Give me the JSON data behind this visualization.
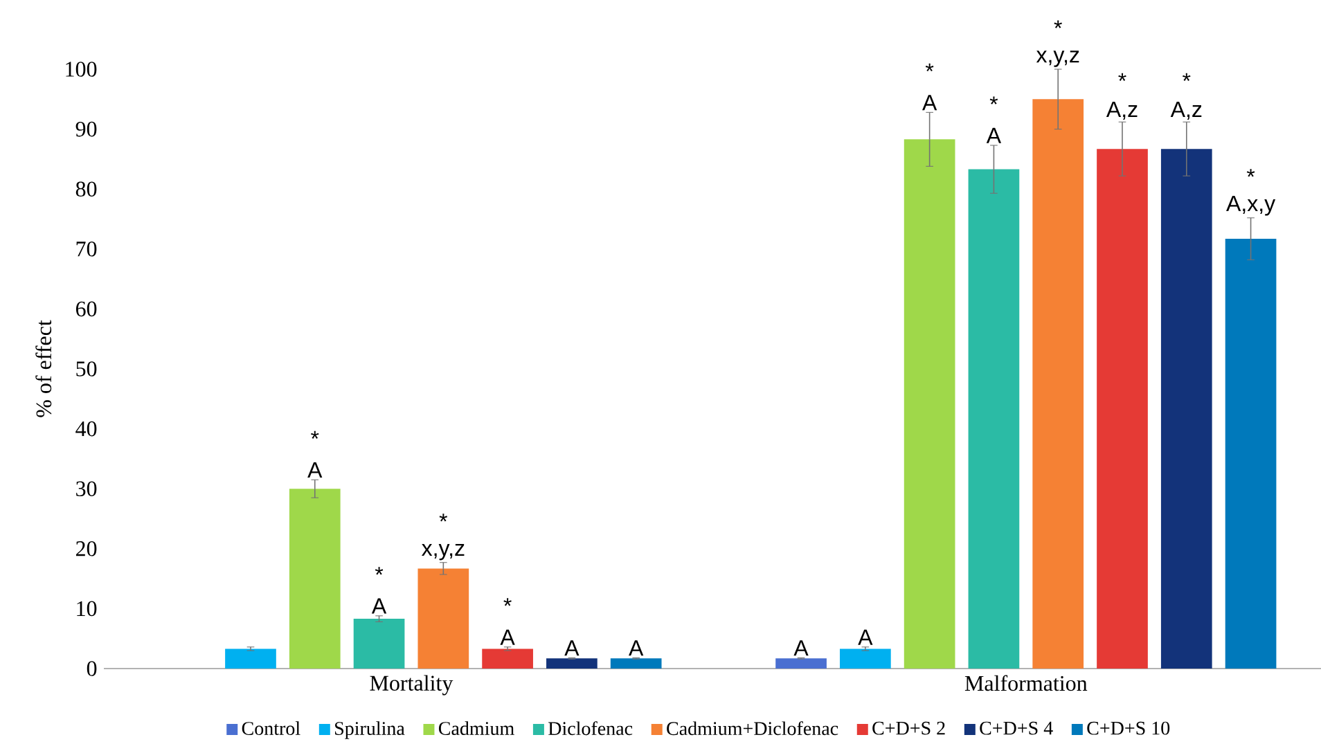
{
  "chart_data": {
    "type": "bar",
    "ylabel": "% of effect",
    "categories": [
      "Mortality",
      "Malformation"
    ],
    "ylim": [
      0,
      100
    ],
    "yticks": [
      0,
      10,
      20,
      30,
      40,
      50,
      60,
      70,
      80,
      90,
      100
    ],
    "legend": "bottom",
    "series": [
      {
        "name": "Control",
        "color": "#4a6fd1",
        "values": [
          0,
          1.7
        ],
        "errors": [
          null,
          0.1
        ],
        "value_labels": [
          null,
          "A"
        ]
      },
      {
        "name": "Spirulina",
        "color": "#00b0f0",
        "values": [
          3.3,
          3.3
        ],
        "errors": [
          0.3,
          0.3
        ],
        "value_labels": [
          null,
          "A"
        ]
      },
      {
        "name": "Cadmium",
        "color": "#9fd84a",
        "values": [
          30,
          88.3
        ],
        "errors": [
          1.5,
          4.5
        ],
        "value_labels": [
          "A",
          "A"
        ]
      },
      {
        "name": "Diclofenac",
        "color": "#2bbba5",
        "values": [
          8.3,
          83.3
        ],
        "errors": [
          0.5,
          4
        ],
        "value_labels": [
          "A",
          "A"
        ]
      },
      {
        "name": "Cadmium+Diclofenac",
        "color": "#f58134",
        "values": [
          16.7,
          95
        ],
        "errors": [
          1,
          5
        ],
        "value_labels": [
          "x,y,z",
          "x,y,z"
        ]
      },
      {
        "name": "C+D+S 2",
        "color": "#e53a35",
        "values": [
          3.3,
          86.7
        ],
        "errors": [
          0.3,
          4.5
        ],
        "value_labels": [
          "A",
          "A,z"
        ]
      },
      {
        "name": "C+D+S 4",
        "color": "#13337a",
        "values": [
          1.7,
          86.7
        ],
        "errors": [
          0.1,
          4.5
        ],
        "value_labels": [
          "A",
          "A,z"
        ]
      },
      {
        "name": "C+D+S 10",
        "color": "#0079bb",
        "values": [
          1.7,
          71.7
        ],
        "errors": [
          0.1,
          3.5
        ],
        "value_labels": [
          "A",
          "A,x,y"
        ]
      }
    ],
    "annotations": [
      "*",
      "*",
      "*",
      "*",
      "*",
      "*",
      "*",
      "*",
      "*",
      "*"
    ]
  }
}
